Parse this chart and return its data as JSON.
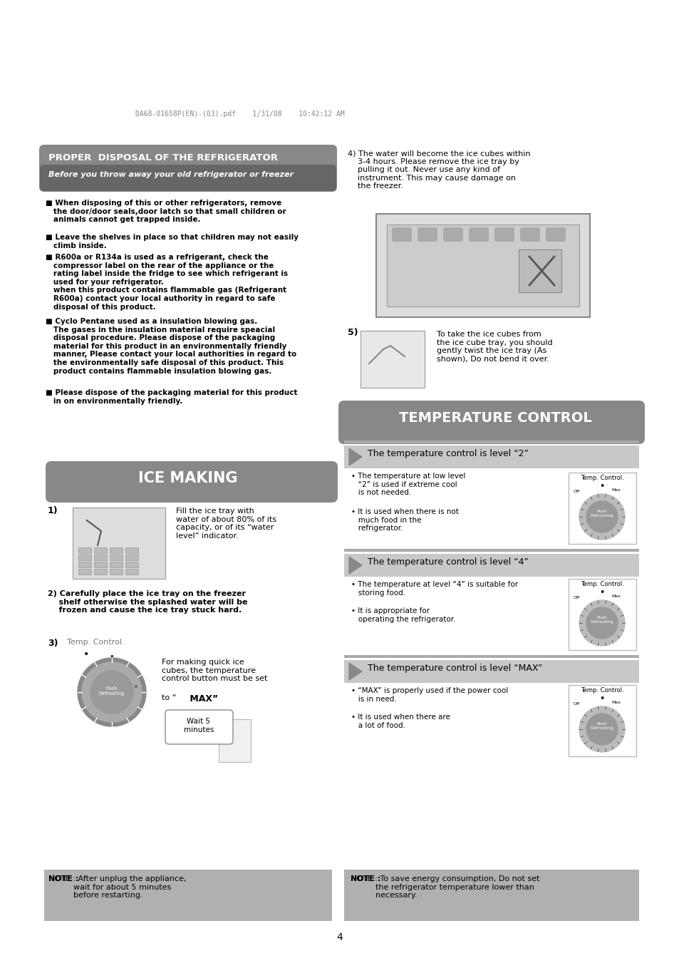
{
  "page_bg": "#ffffff",
  "header_text": "DA68-01658P(EN)-(03).pdf    1/31/08    10:42:12 AM",
  "header_color": "#888888",
  "page_number": "4",
  "proper_disposal_title": "PROPER  DISPOSAL OF THE REFRIGERATOR",
  "proper_disposal_subtitle": "Before you throw away your old refrigerator or freezer",
  "disposal_bullets": [
    "■ When disposing of this or other refrigerators, remove\n   the door/door seals,door latch so that small children or\n   animals cannot get trapped inside.",
    "■ Leave the shelves in place so that children may not easily\n   climb inside.",
    "■ R600a or R134a is used as a refrigerant, check the\n   compressor label on the rear of the appliance or the\n   rating label inside the fridge to see which refrigerant is\n   used for your refrigerator.\n   when this product contains flammable gas (Refrigerant\n   R600a) contact your local authority in regard to safe\n   disposal of this product.",
    "■ Cyclo Pentane used as a insulation blowing gas.\n   The gases in the insulation material require speacial\n   disposal procedure. Please dispose of the packaging\n   material for this product in an environmentally friendly\n   manner, Please contact your local authorities in regard to\n   the environmentally safe disposal of this product. This\n   product contains flammable insulation blowing gas.",
    "■ Please dispose of the packaging material for this product\n   in on environmentally friendly."
  ],
  "ice_making_title": "ICE MAKING",
  "step1_text": "Fill the ice tray with\nwater of about 80% of its\ncapacity, or of its “water\nlevel” indicator.",
  "step2_text": "2) Carefully place the ice tray on the freezer\n    shelf otherwise the splashed water will be\n    frozen and cause the ice tray stuck hard.",
  "step4_text": "4) The water will become the ice cubes within\n    3-4 hours. Please remove the ice tray by\n    pulling it out. Never use any kind of\n    instrument. This may cause damage on\n    the freezer.",
  "step5_text": "To take the ice cubes from\nthe ice cube tray, you should\ngently twist the ice tray (As\nshown), Do not bend it over.",
  "temp_control_title": "TEMPERATURE CONTROL",
  "level2_title": "The temperature control is level “2”",
  "level2_b1": "• The temperature at low level\n   “2” is used if extreme cool\n   is not needed.",
  "level2_b2": "• It is used when there is not\n   much food in the\n   refrigerator.",
  "level4_title": "The temperature control is level “4”",
  "level4_b1": "• The temperature at level “4” is suitable for\n   storing food.",
  "level4_b2": "• It is appropriate for\n   operating the refrigerator.",
  "levelmax_title": "The temperature control is level “MAX”",
  "levelmax_b1": "• “MAX” is properly used if the power cool\n   is in need.",
  "levelmax_b2": "• It is used when there are\n   a lot of food.",
  "note1_bold": "NOTE :",
  "note1_rest": " After unplug the appliance,\n          wait for about 5 minutes\n          before restarting.",
  "note2_bold": "NOTE :",
  "note2_rest": " To save energy consumption, Do not set\n          the refrigerator temperature lower than\n          necessary.",
  "gray_bg": "#888888",
  "light_gray_bg": "#bbbbbb",
  "level_header_bg": "#c8c8c8",
  "note_bg": "#b0b0b0",
  "separator_color": "#aaaaaa"
}
